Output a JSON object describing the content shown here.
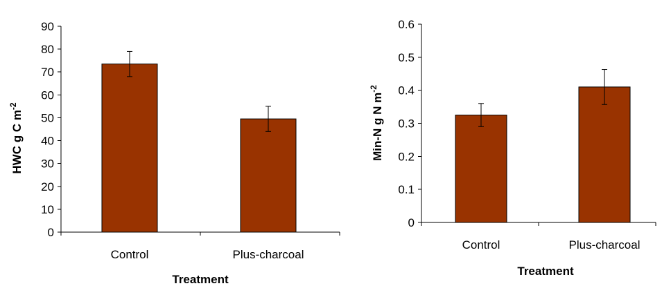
{
  "chart_data": [
    {
      "type": "bar",
      "categories": [
        "Control",
        "Plus-charcoal"
      ],
      "values": [
        73.5,
        49.5
      ],
      "errors": [
        [
          68.0,
          79.0
        ],
        [
          44.0,
          55.0
        ]
      ],
      "xlabel": "Treatment",
      "ylabel_main": "HWC g C m",
      "ylabel_sup": "-2",
      "ylim": [
        0,
        90
      ],
      "yticks": [
        0,
        10,
        20,
        30,
        40,
        50,
        60,
        70,
        80,
        90
      ],
      "ytick_labels": [
        "0",
        "10",
        "20",
        "30",
        "40",
        "50",
        "60",
        "70",
        "80",
        "90"
      ],
      "bar_color": "#993300",
      "grid": false
    },
    {
      "type": "bar",
      "categories": [
        "Control",
        "Plus-charcoal"
      ],
      "values": [
        0.325,
        0.41
      ],
      "errors": [
        [
          0.29,
          0.36
        ],
        [
          0.357,
          0.463
        ]
      ],
      "xlabel": "Treatment",
      "ylabel_main": "Min-N g N m",
      "ylabel_sup": "-2",
      "ylim": [
        0,
        0.6
      ],
      "yticks": [
        0,
        0.1,
        0.2,
        0.3,
        0.4,
        0.5,
        0.6
      ],
      "ytick_labels": [
        "0",
        "0.1",
        "0.2",
        "0.3",
        "0.4",
        "0.5",
        "0.6"
      ],
      "bar_color": "#993300",
      "grid": false
    }
  ]
}
